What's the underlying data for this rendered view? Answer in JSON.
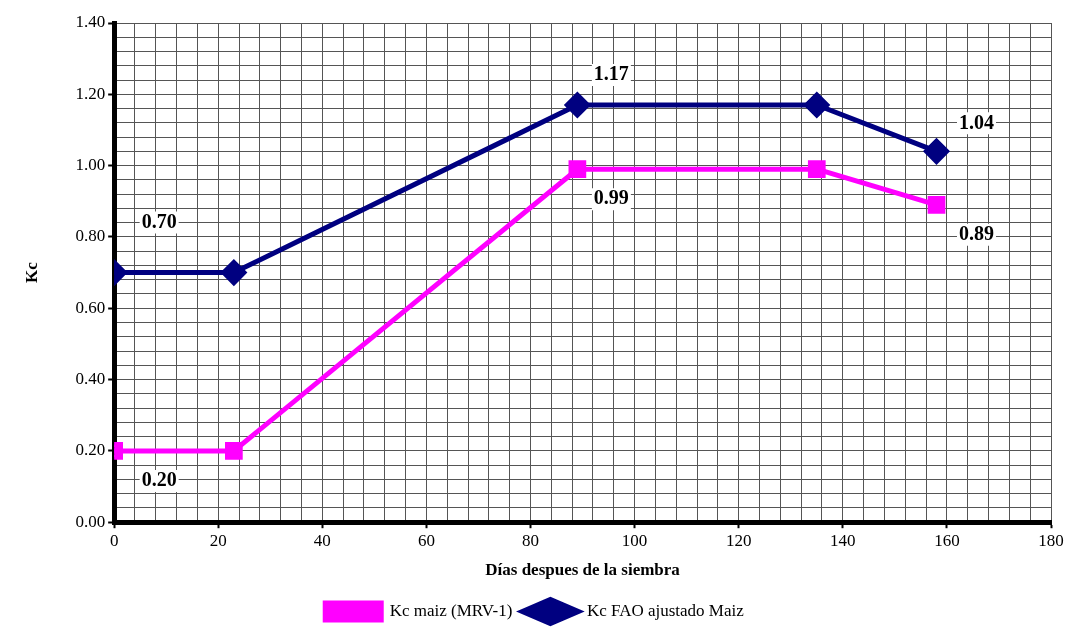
{
  "chart_data": {
    "type": "line",
    "xlabel": "Días despues de la siembra",
    "ylabel": "Kc",
    "legend": "bottom",
    "grid": true,
    "line_style": "solid",
    "xlim": [
      0,
      180
    ],
    "xticks": [
      0,
      {
        "value": 4,
        "label": null
      },
      {
        "value": 8,
        "label": null
      },
      {
        "value": 12,
        "label": null
      },
      {
        "value": 16,
        "label": null
      },
      20,
      {
        "value": 24,
        "label": null
      },
      {
        "value": 28,
        "label": null
      },
      {
        "value": 32,
        "label": null
      },
      {
        "value": 36,
        "label": null
      },
      40,
      {
        "value": 44,
        "label": null
      },
      {
        "value": 48,
        "label": null
      },
      {
        "value": 52,
        "label": null
      },
      {
        "value": 56,
        "label": null
      },
      60,
      {
        "value": 64,
        "label": null
      },
      {
        "value": 68,
        "label": null
      },
      {
        "value": 72,
        "label": null
      },
      {
        "value": 76,
        "label": null
      },
      80,
      {
        "value": 84,
        "label": null
      },
      {
        "value": 88,
        "label": null
      },
      {
        "value": 92,
        "label": null
      },
      {
        "value": 96,
        "label": null
      },
      100,
      {
        "value": 104,
        "label": null
      },
      {
        "value": 108,
        "label": null
      },
      {
        "value": 112,
        "label": null
      },
      {
        "value": 116,
        "label": null
      },
      120,
      {
        "value": 124,
        "label": null
      },
      {
        "value": 128,
        "label": null
      },
      {
        "value": 132,
        "label": null
      },
      {
        "value": 136,
        "label": null
      },
      140,
      {
        "value": 144,
        "label": null
      },
      {
        "value": 148,
        "label": null
      },
      {
        "value": 152,
        "label": null
      },
      {
        "value": 156,
        "label": null
      },
      160,
      {
        "value": 164,
        "label": null
      },
      {
        "value": 168,
        "label": null
      },
      {
        "value": 172,
        "label": null
      },
      {
        "value": 176,
        "label": null
      },
      180
    ],
    "ylim": [
      0,
      1.4
    ],
    "yticks": [
      {
        "value": 0,
        "label": "0.00"
      },
      {
        "value": 0.04,
        "label": null
      },
      {
        "value": 0.08,
        "label": null
      },
      {
        "value": 0.12,
        "label": null
      },
      {
        "value": 0.16,
        "label": null
      },
      {
        "value": 0.2,
        "label": "0.20"
      },
      {
        "value": 0.24,
        "label": null
      },
      {
        "value": 0.28,
        "label": null
      },
      {
        "value": 0.32,
        "label": null
      },
      {
        "value": 0.36,
        "label": null
      },
      {
        "value": 0.4,
        "label": "0.40"
      },
      {
        "value": 0.44,
        "label": null
      },
      {
        "value": 0.48,
        "label": null
      },
      {
        "value": 0.52,
        "label": null
      },
      {
        "value": 0.56,
        "label": null
      },
      {
        "value": 0.6,
        "label": "0.60"
      },
      {
        "value": 0.64,
        "label": null
      },
      {
        "value": 0.68,
        "label": null
      },
      {
        "value": 0.72,
        "label": null
      },
      {
        "value": 0.76,
        "label": null
      },
      {
        "value": 0.8,
        "label": "0.80"
      },
      {
        "value": 0.84,
        "label": null
      },
      {
        "value": 0.88,
        "label": null
      },
      {
        "value": 0.92,
        "label": null
      },
      {
        "value": 0.96,
        "label": null
      },
      {
        "value": 1.0,
        "label": "1.00"
      },
      {
        "value": 1.04,
        "label": null
      },
      {
        "value": 1.08,
        "label": null
      },
      {
        "value": 1.12,
        "label": null
      },
      {
        "value": 1.16,
        "label": null
      },
      {
        "value": 1.2,
        "label": "1.20"
      },
      {
        "value": 1.24,
        "label": null
      },
      {
        "value": 1.28,
        "label": null
      },
      {
        "value": 1.32,
        "label": null
      },
      {
        "value": 1.36,
        "label": null
      },
      {
        "value": 1.4,
        "label": "1.40"
      }
    ],
    "x": [
      0,
      23,
      89,
      135,
      158
    ],
    "series": [
      {
        "name": "Kc maiz (MRV-1)",
        "color": "#ff00ff",
        "marker": "square",
        "values": [
          0.2,
          0.2,
          0.99,
          0.99,
          0.89
        ],
        "value_labels": [
          "0.20",
          null,
          "0.99",
          null,
          "0.89"
        ]
      },
      {
        "name": "Kc FAO ajustado Maiz",
        "color": "#000080",
        "marker": "diamond",
        "values": [
          0.7,
          0.7,
          1.17,
          1.17,
          1.04
        ],
        "value_labels": [
          "0.70",
          null,
          "1.17",
          null,
          "1.04"
        ]
      }
    ]
  }
}
